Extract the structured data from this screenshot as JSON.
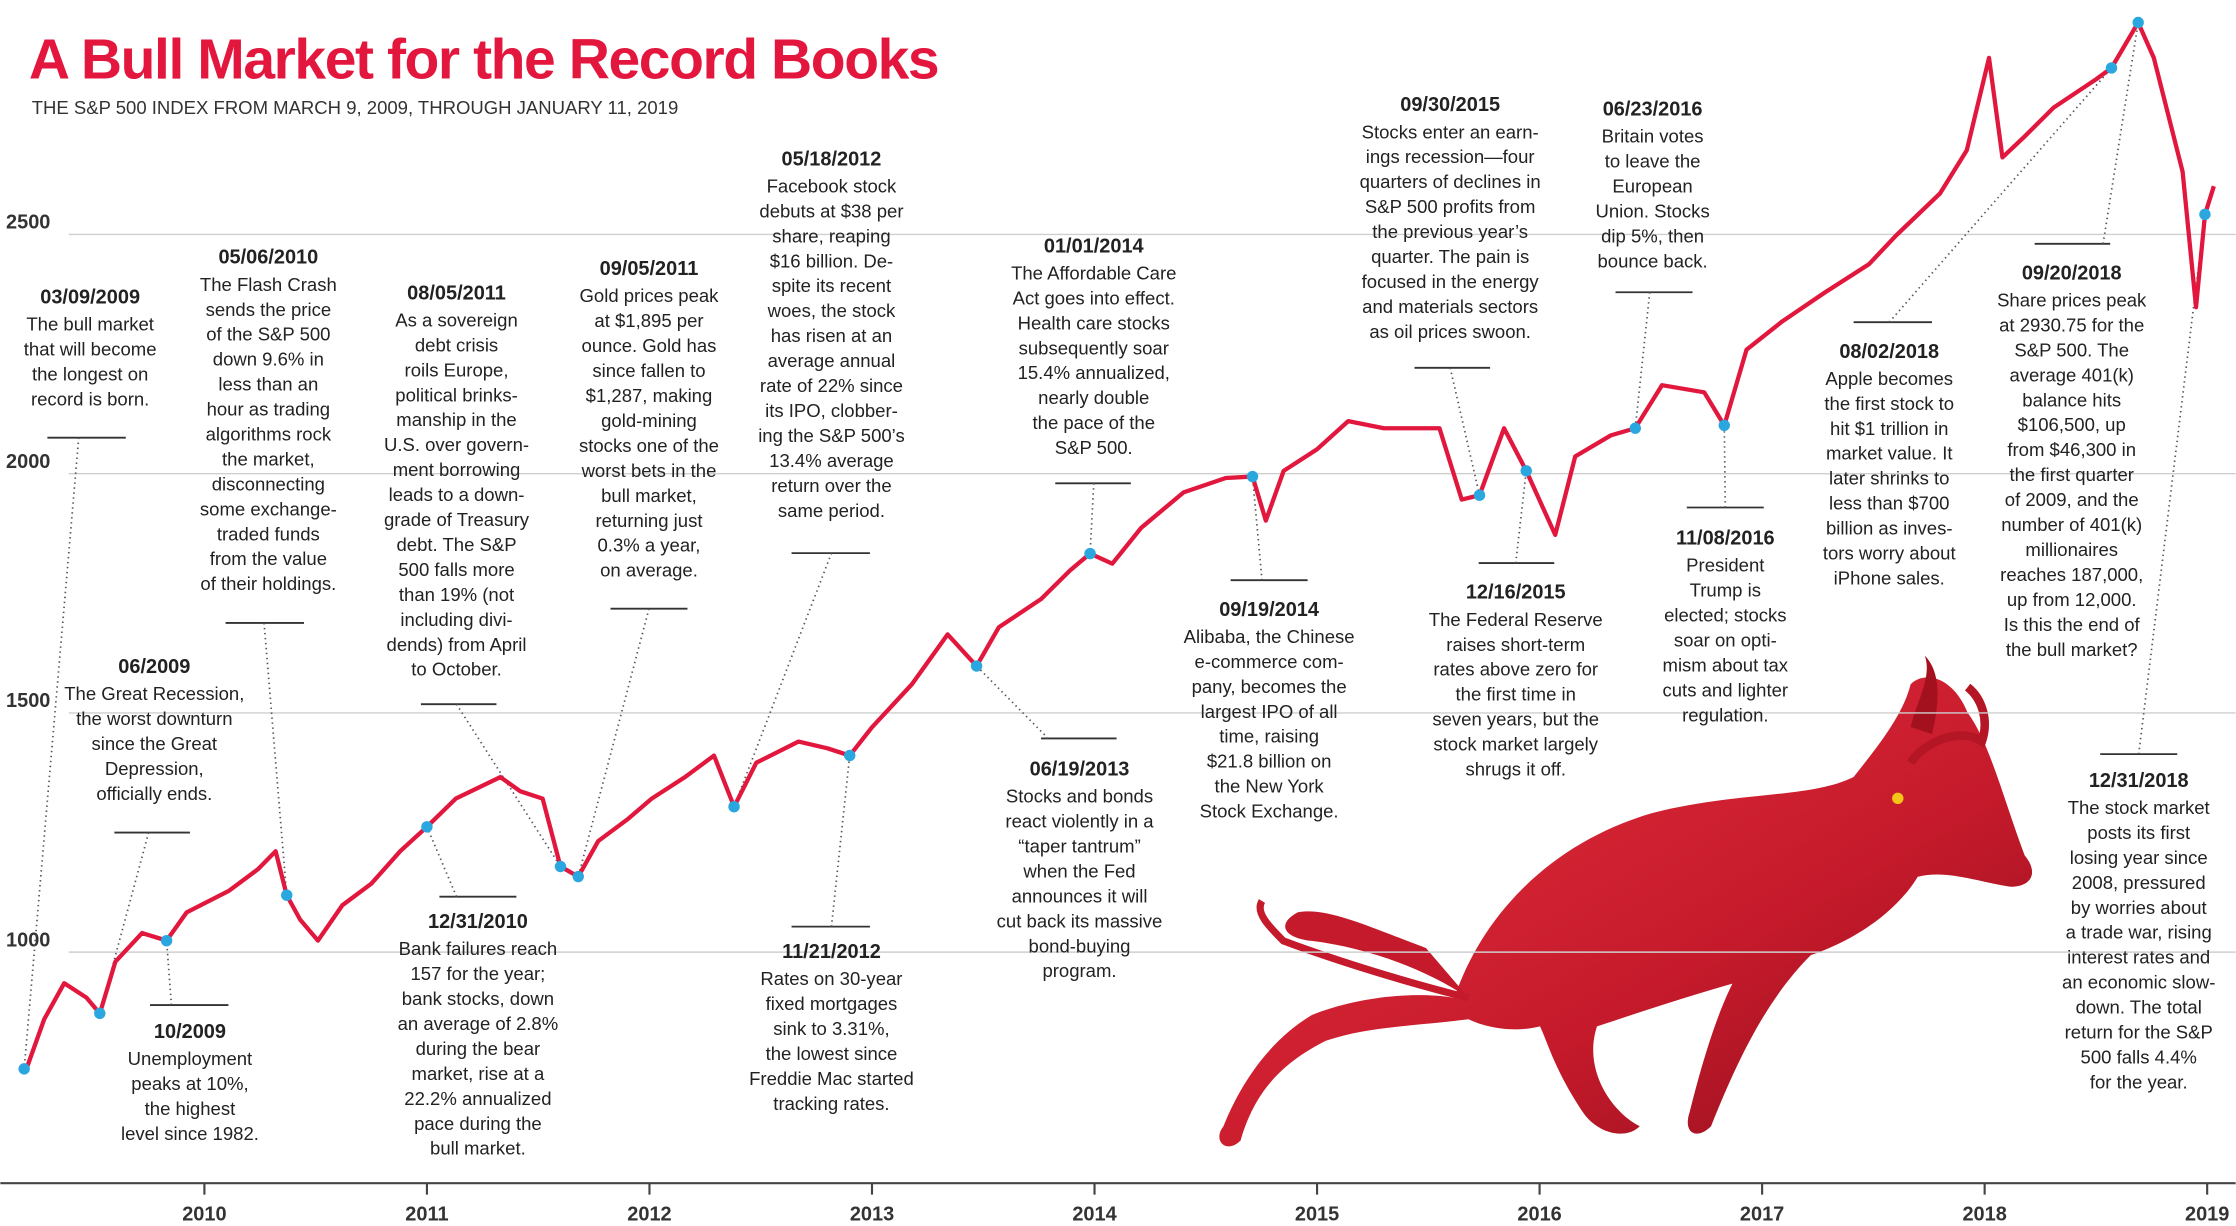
{
  "chart_data": {
    "type": "line",
    "title": "A Bull Market for the Record Books",
    "subtitle": "THE S&P 500 INDEX FROM MARCH 9, 2009, THROUGH JANUARY 11, 2019",
    "color": "#e2173d",
    "marker_color": "#2aa7df",
    "grid": true,
    "xlim": [
      2009.083,
      2019.128
    ],
    "xticks": [
      2010,
      2011,
      2012,
      2013,
      2014,
      2015,
      2016,
      2017,
      2018,
      2019
    ],
    "ylim": [
      520,
      2990
    ],
    "yticks": [
      1000,
      1500,
      2000,
      2500
    ],
    "x": [
      2009.2,
      2009.28,
      2009.37,
      2009.47,
      2009.53,
      2009.6,
      2009.72,
      2009.83,
      2009.92,
      2010.11,
      2010.24,
      2010.32,
      2010.37,
      2010.43,
      2010.51,
      2010.62,
      2010.75,
      2010.88,
      2011.0,
      2011.13,
      2011.33,
      2011.42,
      2011.52,
      2011.6,
      2011.68,
      2011.77,
      2011.9,
      2012.01,
      2012.16,
      2012.29,
      2012.38,
      2012.48,
      2012.67,
      2012.8,
      2012.9,
      2013.0,
      2013.18,
      2013.34,
      2013.47,
      2013.57,
      2013.76,
      2013.89,
      2013.98,
      2014.08,
      2014.21,
      2014.4,
      2014.59,
      2014.71,
      2014.77,
      2014.85,
      2015.0,
      2015.14,
      2015.3,
      2015.43,
      2015.55,
      2015.65,
      2015.73,
      2015.84,
      2015.94,
      2016.07,
      2016.16,
      2016.32,
      2016.43,
      2016.55,
      2016.74,
      2016.83,
      2016.93,
      2017.09,
      2017.28,
      2017.48,
      2017.6,
      2017.8,
      2017.92,
      2018.02,
      2018.08,
      2018.18,
      2018.31,
      2018.5,
      2018.57,
      2018.69,
      2018.76,
      2018.89,
      2018.95,
      2018.99,
      2019.03
    ],
    "values": [
      756,
      860,
      935,
      905,
      872,
      980,
      1040,
      1024,
      1083,
      1128,
      1173,
      1211,
      1119,
      1068,
      1024,
      1098,
      1143,
      1211,
      1262,
      1321,
      1366,
      1336,
      1321,
      1179,
      1158,
      1232,
      1277,
      1321,
      1366,
      1411,
      1304,
      1396,
      1440,
      1426,
      1411,
      1470,
      1560,
      1664,
      1598,
      1679,
      1738,
      1798,
      1833,
      1812,
      1887,
      1961,
      1991,
      1994,
      1902,
      2006,
      2051,
      2110,
      2095,
      2095,
      2095,
      1946,
      1955,
      2095,
      2006,
      1872,
      2036,
      2080,
      2095,
      2185,
      2170,
      2101,
      2259,
      2318,
      2378,
      2438,
      2497,
      2586,
      2676,
      2869,
      2661,
      2705,
      2765,
      2824,
      2848,
      2943,
      2869,
      2631,
      2348,
      2542,
      2601
    ],
    "annotations": [
      {
        "date": "03/09/2009",
        "x": 2009.19,
        "y": 756,
        "lines": [
          "The bull market",
          "that will become",
          "the longest on",
          "record is born."
        ]
      },
      {
        "date": "06/2009",
        "x": 2009.53,
        "y": 872,
        "lines": [
          "The Great Recession,",
          "the worst downturn",
          "since the Great",
          "Depression,",
          "officially ends."
        ]
      },
      {
        "date": "10/2009",
        "x": 2009.83,
        "y": 1024,
        "lines": [
          "Unemployment",
          "peaks at 10%,",
          "the highest",
          "level since 1982."
        ]
      },
      {
        "date": "05/06/2010",
        "x": 2010.37,
        "y": 1119,
        "lines": [
          "The Flash Crash",
          "sends the price",
          "of the S&P 500",
          "down 9.6% in",
          "less than an",
          "hour as trading",
          "algorithms rock",
          "the market,",
          "disconnecting",
          "some exchange-",
          "traded funds",
          "from the value",
          "of their holdings."
        ]
      },
      {
        "date": "12/31/2010",
        "x": 2011.0,
        "y": 1262,
        "lines": [
          "Bank failures reach",
          "157 for the year;",
          "bank stocks, down",
          "an average of 2.8%",
          "during the bear",
          "market, rise at a",
          "22.2% annualized",
          "pace during the",
          "bull market."
        ]
      },
      {
        "date": "08/05/2011",
        "x": 2011.6,
        "y": 1179,
        "lines": [
          "As a sovereign",
          "debt crisis",
          "roils Europe,",
          "political brinks-",
          "manship in the",
          "U.S. over govern-",
          "ment borrowing",
          "leads to a down-",
          "grade of Treasury",
          "debt. The S&P",
          "500 falls more",
          "than 19% (not",
          "including divi-",
          "dends) from April",
          "to October."
        ]
      },
      {
        "date": "09/05/2011",
        "x": 2011.68,
        "y": 1158,
        "lines": [
          "Gold prices peak",
          "at $1,895 per",
          "ounce. Gold has",
          "since fallen to",
          "$1,287, making",
          "gold-mining",
          "stocks one of the",
          "worst bets in the",
          "bull market,",
          "returning just",
          "0.3% a year,",
          "on average."
        ]
      },
      {
        "date": "05/18/2012",
        "x": 2012.38,
        "y": 1304,
        "lines": [
          "Facebook stock",
          "debuts at $38 per",
          "share, reaping",
          "$16 billion. De-",
          "spite its recent",
          "woes, the stock",
          "has risen at an",
          "average annual",
          "rate of 22% since",
          "its IPO, clobber-",
          "ing the S&P 500’s",
          "13.4% average",
          "return over the",
          "same period."
        ]
      },
      {
        "date": "11/21/2012",
        "x": 2012.9,
        "y": 1411,
        "lines": [
          "Rates on 30-year",
          "fixed mortgages",
          "sink to 3.31%,",
          "the lowest since",
          "Freddie Mac started",
          "tracking rates."
        ]
      },
      {
        "date": "06/19/2013",
        "x": 2013.47,
        "y": 1598,
        "lines": [
          "Stocks and bonds",
          "react violently in a",
          "“taper tantrum”",
          "when the Fed",
          "announces it will",
          "cut back its massive",
          "bond-buying",
          "program."
        ]
      },
      {
        "date": "01/01/2014",
        "x": 2013.98,
        "y": 1833,
        "lines": [
          "The Affordable Care",
          "Act goes into effect.",
          "Health care stocks",
          "subsequently soar",
          "15.4% annualized,",
          "nearly double",
          "the pace of the",
          "S&P 500."
        ]
      },
      {
        "date": "09/19/2014",
        "x": 2014.71,
        "y": 1994,
        "lines": [
          "Alibaba, the Chinese",
          "e-commerce com-",
          "pany, becomes the",
          "largest IPO of all",
          "time, raising",
          "$21.8 billion on",
          "the New York",
          "Stock Exchange."
        ]
      },
      {
        "date": "09/30/2015",
        "x": 2015.73,
        "y": 1955,
        "lines": [
          "Stocks enter an earn-",
          "ings recession—four",
          "quarters of declines in",
          "S&P 500 profits from",
          "the previous year’s",
          "quarter. The pain is",
          "focused in the energy",
          "and materials sectors",
          "as oil prices swoon."
        ]
      },
      {
        "date": "12/16/2015",
        "x": 2015.94,
        "y": 2006,
        "lines": [
          "The Federal Reserve",
          "raises short-term",
          "rates above zero for",
          "the first time in",
          "seven years, but the",
          "stock market largely",
          "shrugs it off."
        ]
      },
      {
        "date": "06/23/2016",
        "x": 2016.43,
        "y": 2095,
        "lines": [
          "Britain votes",
          "to leave the",
          "European",
          "Union. Stocks",
          "dip 5%, then",
          "bounce back."
        ]
      },
      {
        "date": "11/08/2016",
        "x": 2016.83,
        "y": 2101,
        "lines": [
          "President",
          "Trump is",
          "elected; stocks",
          "soar on opti-",
          "mism about tax",
          "cuts and lighter",
          "regulation."
        ]
      },
      {
        "date": "08/02/2018",
        "x": 2018.57,
        "y": 2848,
        "lines": [
          "Apple becomes",
          "the first stock to",
          "hit $1 trillion in",
          "market value. It",
          "later shrinks to",
          "less than $700",
          "billion as inves-",
          "tors worry about",
          "iPhone sales."
        ]
      },
      {
        "date": "09/20/2018",
        "x": 2018.69,
        "y": 2943,
        "lines": [
          "Share prices peak",
          "at 2930.75 for the",
          "S&P 500. The",
          "average 401(k)",
          "balance hits",
          "$106,500, up",
          "from $46,300 in",
          "the first quarter",
          "of 2009, and the",
          "number of 401(k)",
          "millionaires",
          "reaches 187,000,",
          "up from 12,000.",
          "Is this the end of",
          "the bull market?"
        ]
      },
      {
        "date": "12/31/2018",
        "x": 2018.99,
        "y": 2542,
        "lines": [
          "The stock market",
          "posts its first",
          "losing year since",
          "2008, pressured",
          "by worries about",
          "a trade war, rising",
          "interest rates and",
          "an economic slow-",
          "down. The total",
          "return for the S&P",
          "500 falls 4.4%",
          "for the year."
        ]
      }
    ]
  }
}
